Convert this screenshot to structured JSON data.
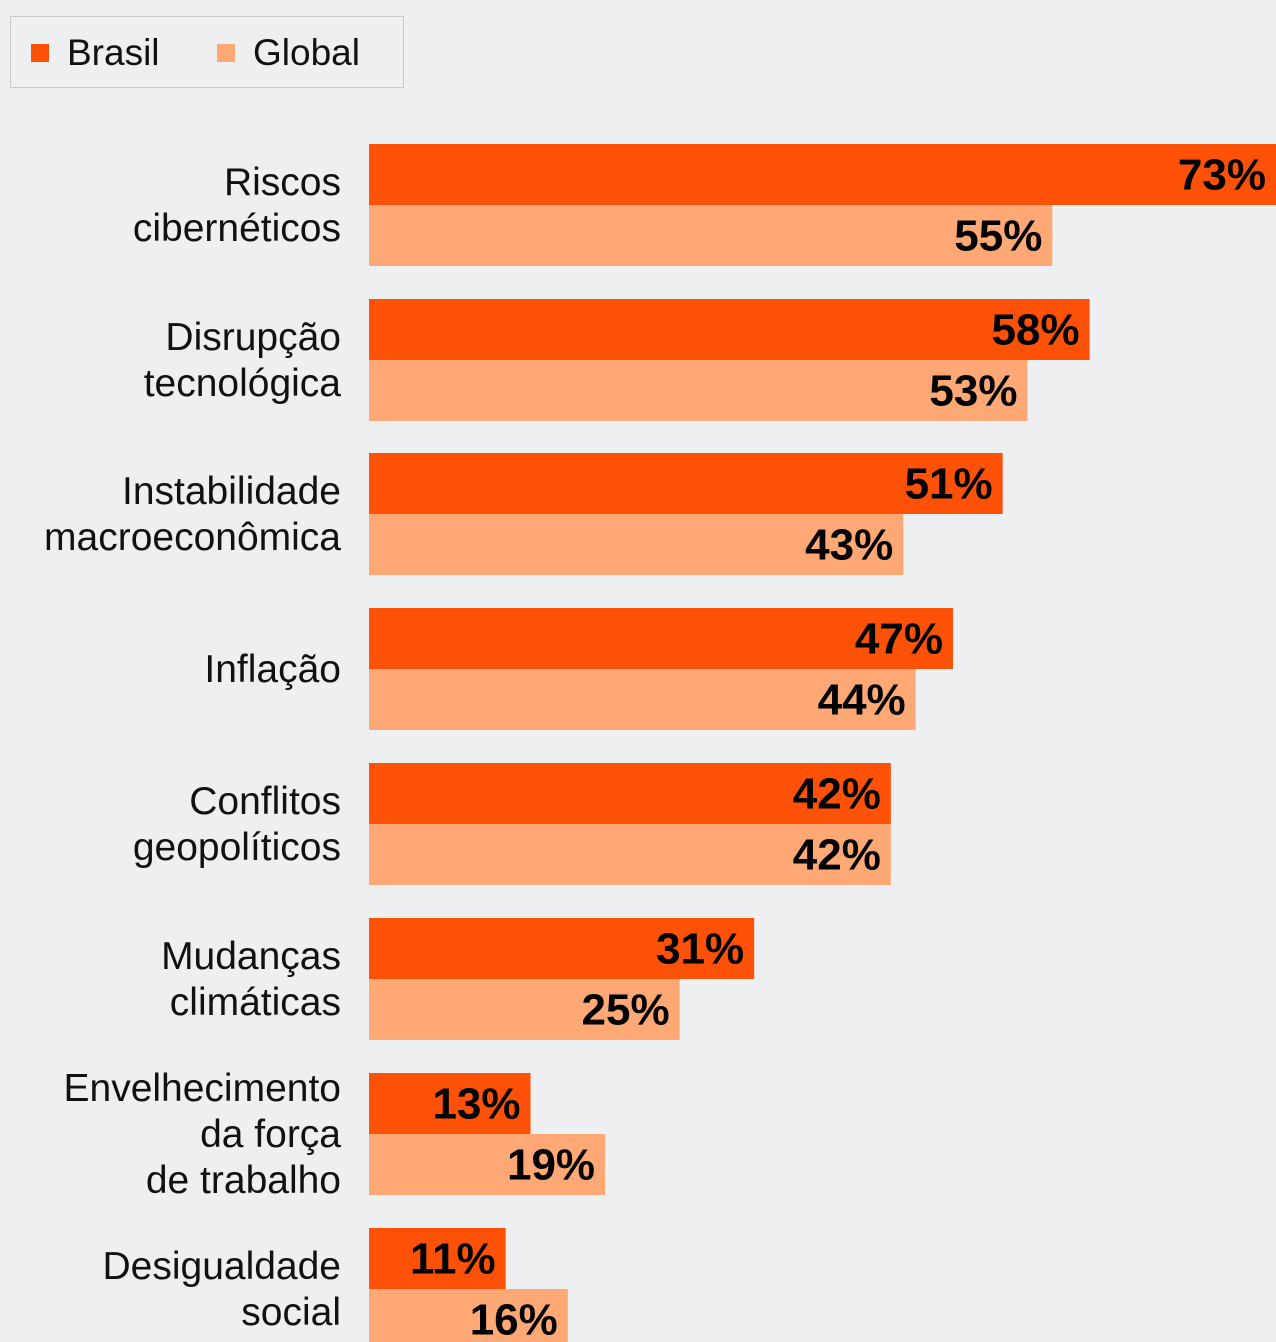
{
  "chart_data": {
    "type": "bar",
    "orientation": "horizontal",
    "categories": [
      [
        "Riscos",
        "cibernéticos"
      ],
      [
        "Disrupção",
        "tecnológica"
      ],
      [
        "Instabilidade",
        "macroeconômica"
      ],
      [
        "Inflação"
      ],
      [
        "Conflitos",
        "geopolíticos"
      ],
      [
        "Mudanças",
        "climáticas"
      ],
      [
        "Envelhecimento",
        "da força",
        "de trabalho"
      ],
      [
        "Desigualdade",
        "social"
      ]
    ],
    "series": [
      {
        "name": "Brasil",
        "color": "#fd5108",
        "values": [
          73,
          58,
          51,
          47,
          42,
          31,
          13,
          11
        ],
        "labels": [
          "73%",
          "58%",
          "51%",
          "47%",
          "42%",
          "31%",
          "13%",
          "11%"
        ]
      },
      {
        "name": "Global",
        "color": "#fea875",
        "values": [
          55,
          53,
          43,
          44,
          42,
          25,
          19,
          16
        ],
        "labels": [
          "55%",
          "53%",
          "43%",
          "44%",
          "42%",
          "25%",
          "19%",
          "16%"
        ]
      }
    ],
    "xlim": [
      0,
      73
    ],
    "grid": false,
    "legend_position": "top-left",
    "title": "",
    "xlabel": "",
    "ylabel": ""
  }
}
